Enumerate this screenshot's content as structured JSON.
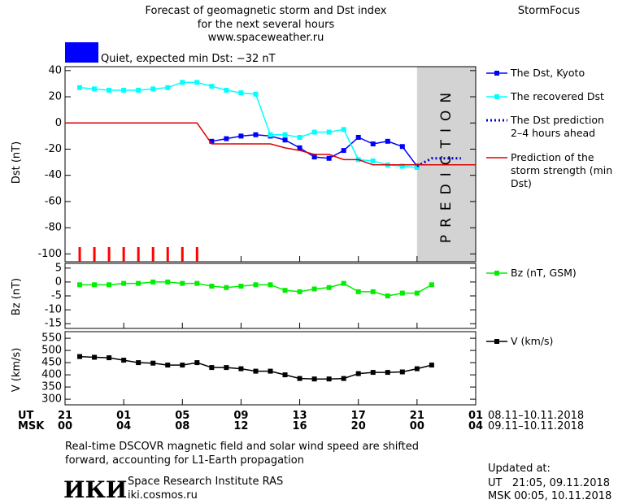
{
  "header": {
    "title_lines": [
      "Forecast of geomagnetic storm and Dst index",
      "for the next several hours",
      "www.spaceweather.ru"
    ],
    "brand": "StormFocus",
    "status": "Quiet, expected min Dst: −32 nT",
    "status_color": "#0000ff"
  },
  "chart_data": [
    {
      "type": "line",
      "ylabel": "Dst (nT)",
      "xlim": [
        0,
        28
      ],
      "xticks": [
        0,
        4,
        8,
        12,
        16,
        20,
        24,
        28
      ],
      "ylim": [
        -106,
        43
      ],
      "yticks": [
        40,
        20,
        0,
        -20,
        -40,
        -60,
        -80,
        -100
      ],
      "prediction_span": [
        24,
        28
      ],
      "prediction_label": "PREDICTION",
      "prediction_color": "#d3d3d3",
      "markers_x": [
        1,
        2,
        3,
        4,
        5,
        6,
        7,
        8,
        9
      ],
      "markers_color": "#ff0000",
      "series": [
        {
          "name": "The Dst, Kyoto",
          "color": "#0000ff",
          "marker": "square",
          "dash": false,
          "x": [
            10,
            11,
            12,
            13,
            14,
            15,
            16,
            17,
            18,
            19,
            20,
            21,
            22,
            23,
            24
          ],
          "values": [
            -14,
            -12,
            -10,
            -9,
            -10,
            -13,
            -19,
            -26,
            -27,
            -21,
            -11,
            -16,
            -14,
            -18,
            -33
          ]
        },
        {
          "name": "The recovered Dst",
          "color": "#00ffff",
          "marker": "square",
          "dash": false,
          "x": [
            1,
            2,
            3,
            4,
            5,
            6,
            7,
            8,
            9,
            10,
            11,
            12,
            13,
            14,
            15,
            16,
            17,
            18,
            19,
            20,
            21,
            22,
            23,
            24
          ],
          "values": [
            27,
            26,
            25,
            25,
            25,
            26,
            27,
            31,
            31,
            28,
            25,
            23,
            22,
            -9,
            -9,
            -11,
            -7,
            -7,
            -5,
            -28,
            -29,
            -32,
            -33,
            -34
          ]
        },
        {
          "name": "The Dst prediction 2–4 hours ahead",
          "color": "#0000cc",
          "marker": "none",
          "dash": true,
          "x": [
            24,
            25,
            26,
            27
          ],
          "values": [
            -33,
            -27,
            -27,
            -27
          ]
        },
        {
          "name": "Prediction of the storm strength (min Dst)",
          "color": "#dd0000",
          "marker": "none",
          "dash": false,
          "x": [
            0,
            9,
            10,
            14,
            15,
            16,
            17,
            18,
            19,
            20,
            21,
            28
          ],
          "values": [
            0,
            0,
            -16,
            -16,
            -19,
            -21,
            -24,
            -24,
            -28,
            -28,
            -32,
            -32
          ]
        }
      ]
    },
    {
      "type": "line",
      "ylabel": "Bz (nT)",
      "xlim": [
        0,
        28
      ],
      "xticks": [
        0,
        4,
        8,
        12,
        16,
        20,
        24,
        28
      ],
      "ylim": [
        -16.7,
        6.7
      ],
      "yticks": [
        5,
        0,
        -5,
        -10,
        -15
      ],
      "series": [
        {
          "name": "Bz (nT, GSM)",
          "color": "#00ee00",
          "marker": "square",
          "dash": false,
          "x": [
            1,
            2,
            3,
            4,
            5,
            6,
            7,
            8,
            9,
            10,
            11,
            12,
            13,
            14,
            15,
            16,
            17,
            18,
            19,
            20,
            21,
            22,
            23,
            24,
            25
          ],
          "values": [
            -1,
            -1,
            -1,
            -0.5,
            -0.5,
            0,
            0,
            -0.5,
            -0.5,
            -1.5,
            -2,
            -1.5,
            -1,
            -1,
            -3,
            -3.5,
            -2.5,
            -2,
            -0.5,
            -3.5,
            -3.5,
            -5,
            -4,
            -4,
            -1
          ]
        }
      ]
    },
    {
      "type": "line",
      "ylabel": "V (km/s)",
      "xlim": [
        0,
        28
      ],
      "xticks": [
        {
          "value": 0,
          "label": "21"
        },
        {
          "value": 4,
          "label": "01"
        },
        {
          "value": 8,
          "label": "05"
        },
        {
          "value": 12,
          "label": "09"
        },
        {
          "value": 16,
          "label": "13"
        },
        {
          "value": 20,
          "label": "17"
        },
        {
          "value": 24,
          "label": "21"
        },
        {
          "value": 28,
          "label": "01"
        }
      ],
      "xtick_labels_msk": [
        "00",
        "04",
        "08",
        "12",
        "16",
        "20",
        "00",
        "04"
      ],
      "row_labels": [
        "UT",
        "MSK"
      ],
      "date_ranges": [
        "08.11–10.11.2018",
        "09.11–10.11.2018"
      ],
      "ylim": [
        277,
        577
      ],
      "yticks": [
        550,
        500,
        450,
        400,
        350,
        300
      ],
      "series": [
        {
          "name": "V (km/s)",
          "color": "#000000",
          "marker": "square",
          "dash": false,
          "x": [
            1,
            2,
            3,
            4,
            5,
            6,
            7,
            8,
            9,
            10,
            11,
            12,
            13,
            14,
            15,
            16,
            17,
            18,
            19,
            20,
            21,
            22,
            23,
            24,
            25
          ],
          "values": [
            475,
            472,
            470,
            460,
            450,
            448,
            440,
            440,
            450,
            430,
            430,
            425,
            415,
            415,
            400,
            385,
            383,
            383,
            385,
            405,
            410,
            410,
            412,
            425,
            440
          ]
        }
      ]
    }
  ],
  "footer": {
    "note_lines": [
      "Real-time DSCOVR magnetic field and solar wind speed are shifted",
      "forward, accounting for L1-Earth propagation"
    ],
    "logo": "ИКИ",
    "institute": "Space Research Institute RAS",
    "url": "iki.cosmos.ru",
    "updated_label": "Updated at:",
    "updated_ut": "UT   21:05, 09.11.2018",
    "updated_msk": "MSK 00:05, 10.11.2018"
  }
}
